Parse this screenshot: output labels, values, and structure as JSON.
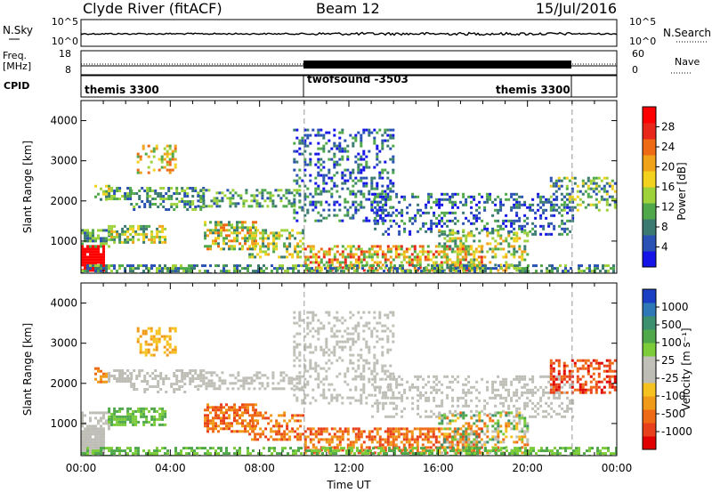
{
  "header": {
    "station": "Clyde River (fitACF)",
    "beam": "Beam 12",
    "date": "15/Jul/2016"
  },
  "top_panels": {
    "nsky_label": "N.Sky",
    "nsky_ticks": [
      "10^5",
      "10^0"
    ],
    "nsearch_label": "N.Search",
    "nsearch_ticks": [
      "10^5",
      "10^0"
    ],
    "freq_label": "Freq.",
    "freq_unit": "[MHz]",
    "freq_ticks": [
      "18",
      "8"
    ],
    "nave_label": "Nave",
    "nave_ticks": [
      "60",
      "0"
    ],
    "cpid_label": "CPID",
    "cpid_segments": [
      {
        "name": "themis 3300",
        "start": 0,
        "end": 10
      },
      {
        "name": "twofsound -3503",
        "start": 10,
        "end": 22
      },
      {
        "name": "themis 3300",
        "start": 18.1,
        "end": 22
      }
    ]
  },
  "chart_data": [
    {
      "type": "heatmap",
      "panel": "power",
      "ylabel": "Slant Range [km]",
      "x_range": [
        0,
        24
      ],
      "y_range": [
        200,
        4500
      ],
      "y_ticks": [
        "1000",
        "2000",
        "3000",
        "4000"
      ],
      "colorbar_label": "Power [dB]",
      "colorbar_ticks": [
        "4",
        "8",
        "12",
        "16",
        "20",
        "24",
        "28"
      ],
      "colorbar_colors": [
        "#1414e8",
        "#2a52b4",
        "#3a7a70",
        "#4fa84a",
        "#9ed23a",
        "#f2d21e",
        "#f0a21a",
        "#ef6a14",
        "#e8261a",
        "#ff0000"
      ],
      "mode_lines": [
        10,
        22
      ]
    },
    {
      "type": "heatmap",
      "panel": "velocity",
      "ylabel": "Slant Range [km]",
      "xlabel": "Time UT",
      "x_range": [
        0,
        24
      ],
      "x_ticks": [
        "00:00",
        "04:00",
        "08:00",
        "12:00",
        "16:00",
        "20:00",
        "00:00"
      ],
      "y_range": [
        200,
        4500
      ],
      "y_ticks": [
        "1000",
        "2000",
        "3000",
        "4000"
      ],
      "colorbar_label": "Velocity [m s⁻¹]",
      "colorbar_ticks": [
        "1000",
        "500",
        "100",
        "25",
        "-25",
        "-100",
        "-500",
        "-1000"
      ],
      "colorbar_colors": [
        "#1a3fc4",
        "#2e78b8",
        "#3c9070",
        "#4fa84a",
        "#7ccc3a",
        "#c0c0b8",
        "#bdbdb6",
        "#f5c220",
        "#f09a1a",
        "#ef6a14",
        "#e8401a",
        "#e00000"
      ],
      "mode_lines": [
        10,
        22
      ]
    }
  ]
}
